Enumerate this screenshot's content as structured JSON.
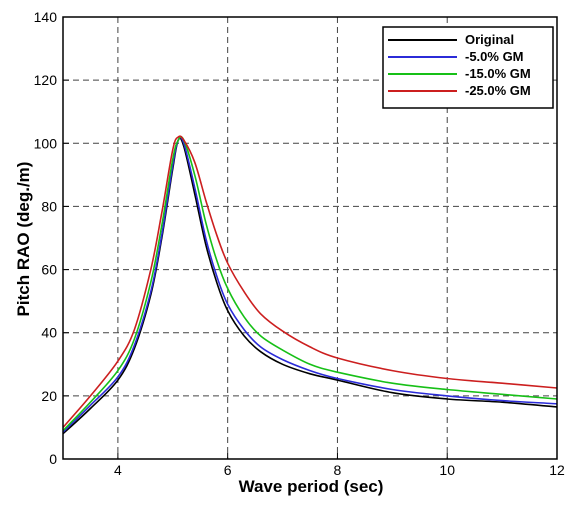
{
  "chart_data": {
    "type": "line",
    "title": "",
    "xlabel": "Wave period (sec)",
    "ylabel": "Pitch RAO (deg./m)",
    "xlim": [
      3,
      12
    ],
    "ylim": [
      0,
      140
    ],
    "xticks": [
      4,
      6,
      8,
      10,
      12
    ],
    "yticks": [
      0,
      20,
      40,
      60,
      80,
      100,
      120,
      140
    ],
    "grid": true,
    "grid_style": "dashed",
    "legend_position": "top-right",
    "series": [
      {
        "name": "Original",
        "color": "#000000",
        "x": [
          3.0,
          3.5,
          4.0,
          4.3,
          4.6,
          4.8,
          5.0,
          5.1,
          5.2,
          5.4,
          5.6,
          5.8,
          6.0,
          6.3,
          6.6,
          7.0,
          7.5,
          8.0,
          9.0,
          10.0,
          11.0,
          12.0
        ],
        "y": [
          8,
          16,
          25,
          35,
          52,
          70,
          92,
          101,
          99,
          84,
          68,
          56,
          47,
          39,
          34,
          30,
          27,
          25,
          21,
          19,
          18,
          16.5
        ]
      },
      {
        "name": "-5.0% GM",
        "color": "#2b2bd8",
        "x": [
          3.0,
          3.5,
          4.0,
          4.3,
          4.6,
          4.8,
          5.0,
          5.1,
          5.2,
          5.4,
          5.6,
          5.8,
          6.0,
          6.3,
          6.6,
          7.0,
          7.5,
          8.0,
          9.0,
          10.0,
          11.0,
          12.0
        ],
        "y": [
          8.5,
          17,
          26,
          36,
          53,
          71,
          93,
          101,
          100,
          86,
          70,
          58,
          49,
          41,
          35.5,
          31.5,
          28,
          25.5,
          22,
          20,
          18.5,
          17.5
        ]
      },
      {
        "name": "-15.0% GM",
        "color": "#17c017",
        "x": [
          3.0,
          3.5,
          4.0,
          4.3,
          4.6,
          4.8,
          5.0,
          5.1,
          5.2,
          5.4,
          5.6,
          5.8,
          6.0,
          6.3,
          6.6,
          7.0,
          7.5,
          8.0,
          9.0,
          10.0,
          11.0,
          12.0
        ],
        "y": [
          9,
          18,
          28,
          38,
          56,
          74,
          95,
          101,
          101,
          90,
          75,
          63,
          54,
          45,
          39,
          34.5,
          30,
          27.5,
          24,
          22,
          20.5,
          19
        ]
      },
      {
        "name": "-25.0% GM",
        "color": "#cc1f1f",
        "x": [
          3.0,
          3.5,
          4.0,
          4.3,
          4.6,
          4.8,
          5.0,
          5.1,
          5.2,
          5.4,
          5.6,
          5.8,
          6.0,
          6.3,
          6.6,
          7.0,
          7.5,
          8.0,
          9.0,
          10.0,
          11.0,
          12.0
        ],
        "y": [
          10,
          20,
          31,
          41,
          60,
          78,
          98,
          102,
          101,
          94,
          82,
          71,
          62,
          53,
          46,
          40.5,
          35.5,
          32,
          28,
          25.5,
          24,
          22.5
        ]
      }
    ]
  }
}
